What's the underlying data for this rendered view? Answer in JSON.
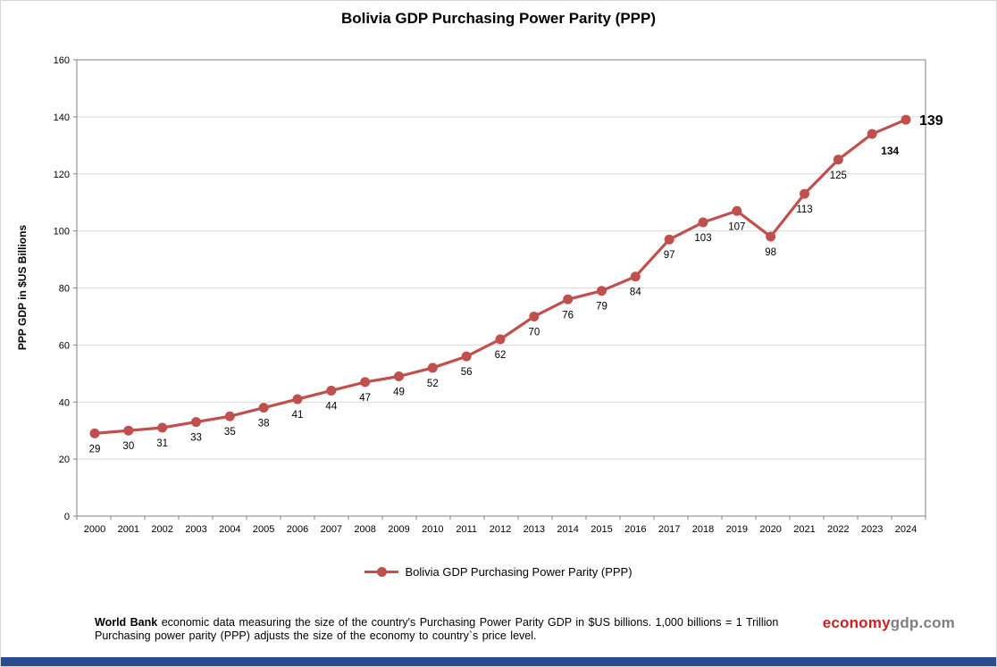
{
  "chart_data": {
    "type": "line",
    "title": "Bolivia GDP Purchasing Power Parity (PPP)",
    "x": [
      2000,
      2001,
      2002,
      2003,
      2004,
      2005,
      2006,
      2007,
      2008,
      2009,
      2010,
      2011,
      2012,
      2013,
      2014,
      2015,
      2016,
      2017,
      2018,
      2019,
      2020,
      2021,
      2022,
      2023,
      2024
    ],
    "series": [
      {
        "name": "Bolivia GDP Purchasing Power Parity (PPP)",
        "values": [
          29,
          30,
          31,
          33,
          35,
          38,
          41,
          44,
          47,
          49,
          52,
          56,
          62,
          70,
          76,
          79,
          84,
          97,
          103,
          107,
          98,
          113,
          125,
          134,
          139
        ]
      }
    ],
    "xlabel": "",
    "ylabel": "PPP GDP in $US Billions",
    "ylim": [
      0,
      160
    ],
    "yticks": [
      0,
      20,
      40,
      60,
      80,
      100,
      120,
      140,
      160
    ],
    "grid": true,
    "legend_position": "bottom",
    "line_color": "#C0504D",
    "gridline_color": "#d9d9d9",
    "axis_color": "#808080"
  },
  "footer": {
    "bold1": "World Bank",
    "text1": " economic data  measuring the size of the country's Purchasing Power Parity GDP in $US billions. 1,000 billions = 1 Trillion",
    "text2": "Purchasing power parity (PPP) adjusts the size of the economy to country`s price level."
  },
  "branding": {
    "part1": "economy",
    "part2": "gdp",
    "part3": ".com",
    "accent_color": "#cc1f1f",
    "gray_color": "#7f7f7f"
  },
  "colors": {
    "bottom_bar": "#2a4b8d"
  }
}
